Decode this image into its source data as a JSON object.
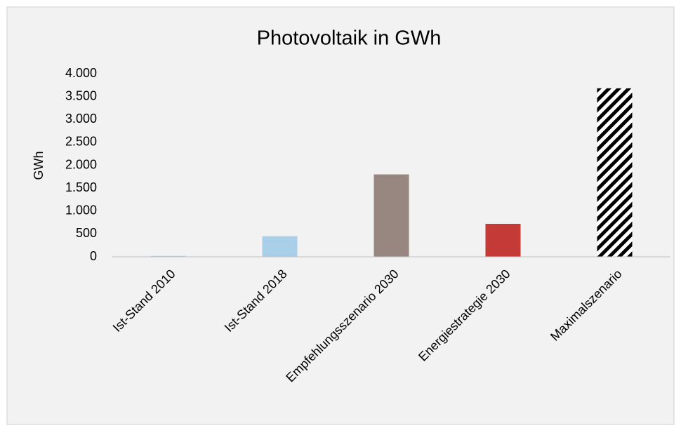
{
  "chart_data": {
    "type": "bar",
    "title": "Photovoltaik in GWh",
    "y_label": "GWh",
    "categories": [
      "Ist-Stand 2010",
      "Ist-Stand 2018",
      "Empfehlungsszenario 2030",
      "Energiestrategie 2030",
      "Maximalszenario"
    ],
    "values": [
      20,
      450,
      1800,
      720,
      3680
    ],
    "colors": [
      "#a9cfe9",
      "#a9cfe9",
      "#978780",
      "#c43a36",
      "#000000"
    ],
    "patterns": [
      null,
      null,
      null,
      null,
      "diagonal-stripes"
    ],
    "ylim": [
      0,
      4000
    ],
    "yticks": [
      0,
      500,
      {
        "value": 1000,
        "label": "1.000"
      },
      {
        "value": 1500,
        "label": "1.500"
      },
      {
        "value": 2000,
        "label": "2.000"
      },
      {
        "value": 2500,
        "label": "2.500"
      },
      {
        "value": 3000,
        "label": "3.000"
      },
      {
        "value": 3500,
        "label": "3.500"
      },
      {
        "value": 4000,
        "label": "4.000"
      }
    ],
    "grid": false
  }
}
